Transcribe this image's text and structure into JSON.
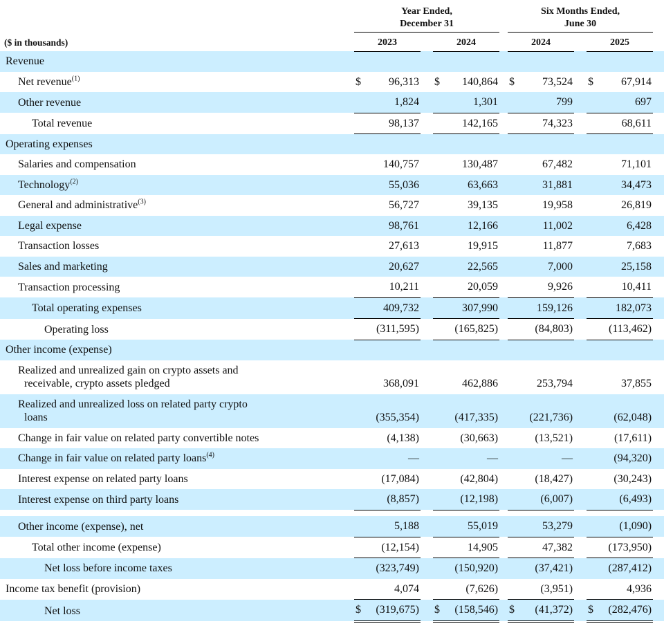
{
  "meta": {
    "units_label": "($ in thousands)"
  },
  "colors": {
    "shade": "#cceeff",
    "line": "#000000",
    "ink": "#111111"
  },
  "columns": {
    "group1": {
      "title_line1": "Year Ended,",
      "title_line2": "December 31",
      "years": [
        "2023",
        "2024"
      ]
    },
    "group2": {
      "title_line1": "Six Months Ended,",
      "title_line2": "June 30",
      "years": [
        "2024",
        "2025"
      ]
    }
  },
  "chart_data": {
    "type": "table",
    "title": "Statement of operations ($ in thousands)",
    "column_groups": [
      "Year Ended, December 31",
      "Six Months Ended, June 30"
    ],
    "columns": [
      "2023",
      "2024",
      "2024",
      "2025"
    ]
  },
  "rows": [
    {
      "label": "Revenue",
      "indent": 0,
      "shaded": true,
      "dollar": false,
      "underline": "none",
      "gap_before": false,
      "values": [
        "",
        "",
        "",
        ""
      ]
    },
    {
      "label": "Net revenue",
      "sup": "(1)",
      "indent": 1,
      "shaded": false,
      "dollar": true,
      "underline": "none",
      "gap_before": false,
      "values": [
        "96,313",
        "140,864",
        "73,524",
        "67,914"
      ]
    },
    {
      "label": "Other revenue",
      "indent": 1,
      "shaded": true,
      "dollar": false,
      "underline": "single",
      "gap_before": false,
      "values": [
        "1,824",
        "1,301",
        "799",
        "697"
      ]
    },
    {
      "label": "Total revenue",
      "indent": 2,
      "shaded": false,
      "dollar": false,
      "underline": "single",
      "gap_before": false,
      "values": [
        "98,137",
        "142,165",
        "74,323",
        "68,611"
      ]
    },
    {
      "label": "Operating expenses",
      "indent": 0,
      "shaded": true,
      "dollar": false,
      "underline": "none",
      "gap_before": false,
      "values": [
        "",
        "",
        "",
        ""
      ]
    },
    {
      "label": "Salaries and compensation",
      "indent": 1,
      "shaded": false,
      "dollar": false,
      "underline": "none",
      "gap_before": false,
      "values": [
        "140,757",
        "130,487",
        "67,482",
        "71,101"
      ]
    },
    {
      "label": "Technology",
      "sup": "(2)",
      "indent": 1,
      "shaded": true,
      "dollar": false,
      "underline": "none",
      "gap_before": false,
      "values": [
        "55,036",
        "63,663",
        "31,881",
        "34,473"
      ]
    },
    {
      "label": "General and administrative",
      "sup": "(3)",
      "indent": 1,
      "shaded": false,
      "dollar": false,
      "underline": "none",
      "gap_before": false,
      "values": [
        "56,727",
        "39,135",
        "19,958",
        "26,819"
      ]
    },
    {
      "label": "Legal expense",
      "indent": 1,
      "shaded": true,
      "dollar": false,
      "underline": "none",
      "gap_before": false,
      "values": [
        "98,761",
        "12,166",
        "11,002",
        "6,428"
      ]
    },
    {
      "label": "Transaction losses",
      "indent": 1,
      "shaded": false,
      "dollar": false,
      "underline": "none",
      "gap_before": false,
      "values": [
        "27,613",
        "19,915",
        "11,877",
        "7,683"
      ]
    },
    {
      "label": "Sales and marketing",
      "indent": 1,
      "shaded": true,
      "dollar": false,
      "underline": "none",
      "gap_before": false,
      "values": [
        "20,627",
        "22,565",
        "7,000",
        "25,158"
      ]
    },
    {
      "label": "Transaction processing",
      "indent": 1,
      "shaded": false,
      "dollar": false,
      "underline": "single",
      "gap_before": false,
      "values": [
        "10,211",
        "20,059",
        "9,926",
        "10,411"
      ]
    },
    {
      "label": "Total operating expenses",
      "indent": 2,
      "shaded": true,
      "dollar": false,
      "underline": "single",
      "gap_before": false,
      "values": [
        "409,732",
        "307,990",
        "159,126",
        "182,073"
      ]
    },
    {
      "label": "Operating loss",
      "indent": 3,
      "shaded": false,
      "dollar": false,
      "underline": "single",
      "gap_before": false,
      "values": [
        "(311,595)",
        "(165,825)",
        "(84,803)",
        "(113,462)"
      ]
    },
    {
      "label": "Other income (expense)",
      "indent": 0,
      "shaded": true,
      "dollar": false,
      "underline": "none",
      "gap_before": false,
      "values": [
        "",
        "",
        "",
        ""
      ]
    },
    {
      "label": "Realized and unrealized gain on crypto assets and",
      "label2": "receivable, crypto assets pledged",
      "indent": 1,
      "shaded": false,
      "dollar": false,
      "underline": "none",
      "gap_before": false,
      "values": [
        "368,091",
        "462,886",
        "253,794",
        "37,855"
      ]
    },
    {
      "label": "Realized and unrealized loss on related party crypto",
      "label2": "loans",
      "indent": 1,
      "shaded": true,
      "dollar": false,
      "underline": "none",
      "gap_before": false,
      "values": [
        "(355,354)",
        "(417,335)",
        "(221,736)",
        "(62,048)"
      ]
    },
    {
      "label": "Change in fair value on related party convertible notes",
      "indent": 1,
      "shaded": false,
      "dollar": false,
      "underline": "none",
      "gap_before": false,
      "values": [
        "(4,138)",
        "(30,663)",
        "(13,521)",
        "(17,611)"
      ]
    },
    {
      "label": "Change in fair value on related party loans",
      "sup": "(4)",
      "indent": 1,
      "shaded": true,
      "dollar": false,
      "underline": "none",
      "gap_before": false,
      "values": [
        "—",
        "—",
        "—",
        "(94,320)"
      ]
    },
    {
      "label": "Interest expense on related party loans",
      "indent": 1,
      "shaded": false,
      "dollar": false,
      "underline": "none",
      "gap_before": false,
      "values": [
        "(17,084)",
        "(42,804)",
        "(18,427)",
        "(30,243)"
      ]
    },
    {
      "label": "Interest expense on third party loans",
      "indent": 1,
      "shaded": true,
      "dollar": false,
      "underline": "single",
      "gap_before": false,
      "values": [
        "(8,857)",
        "(12,198)",
        "(6,007)",
        "(6,493)"
      ]
    },
    {
      "label": "Other income (expense), net",
      "indent": 1,
      "shaded": true,
      "dollar": false,
      "underline": "single",
      "gap_before": true,
      "values": [
        "5,188",
        "55,019",
        "53,279",
        "(1,090)"
      ]
    },
    {
      "label": "Total other income (expense)",
      "indent": 2,
      "shaded": false,
      "dollar": false,
      "underline": "single",
      "gap_before": false,
      "values": [
        "(12,154)",
        "14,905",
        "47,382",
        "(173,950)"
      ]
    },
    {
      "label": "Net loss before income taxes",
      "indent": 3,
      "shaded": true,
      "dollar": false,
      "underline": "none",
      "gap_before": false,
      "values": [
        "(323,749)",
        "(150,920)",
        "(37,421)",
        "(287,412)"
      ]
    },
    {
      "label": "Income tax benefit (provision)",
      "indent": 0,
      "shaded": false,
      "dollar": false,
      "underline": "single",
      "gap_before": false,
      "values": [
        "4,074",
        "(7,626)",
        "(3,951)",
        "4,936"
      ]
    },
    {
      "label": "Net loss",
      "indent": 3,
      "shaded": true,
      "dollar": true,
      "underline": "double",
      "gap_before": false,
      "values": [
        "(319,675)",
        "(158,546)",
        "(41,372)",
        "(282,476)"
      ]
    }
  ]
}
